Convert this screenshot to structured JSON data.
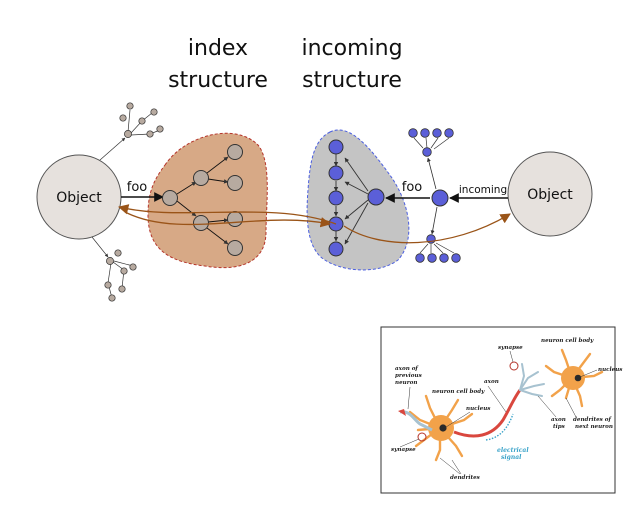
{
  "labels": {
    "index_structure": [
      "index",
      "structure"
    ],
    "incoming_structure": [
      "incoming",
      "structure"
    ],
    "object_left": "Object",
    "object_right": "Object",
    "edge_foo_left": "foo",
    "edge_foo_right": "foo",
    "edge_incoming": "incoming"
  },
  "colors": {
    "index_fill": "#d7a986",
    "index_border": "#b5342a",
    "index_node": "#b7aaa0",
    "incoming_fill": "#c4c4c4",
    "incoming_border": "#4a5ee0",
    "incoming_node": "#5b5fd8",
    "object_fill": "#e6e1dd",
    "cross_arrow": "#9a5418",
    "neuron_orange": "#f2a24a",
    "axon_red": "#d9473e",
    "signal_blue": "#3aa3c9"
  },
  "neuron_figure": {
    "labels": {
      "axon_prev_1": "axon of",
      "axon_prev_2": "previous",
      "axon_prev_3": "neuron",
      "cell_body_left": "neuron cell body",
      "nucleus_left": "nucleus",
      "synapse_left": "synapse",
      "dendrites": "dendrites",
      "electrical_1": "electrical",
      "electrical_2": "signal",
      "axon": "axon",
      "axon_tips_1": "axon",
      "axon_tips_2": "tips",
      "synapse_right": "synapse",
      "cell_body_right": "neuron cell body",
      "nucleus_right": "nucleus",
      "dendrites_next_1": "dendrites of",
      "dendrites_next_2": "next neuron"
    }
  }
}
